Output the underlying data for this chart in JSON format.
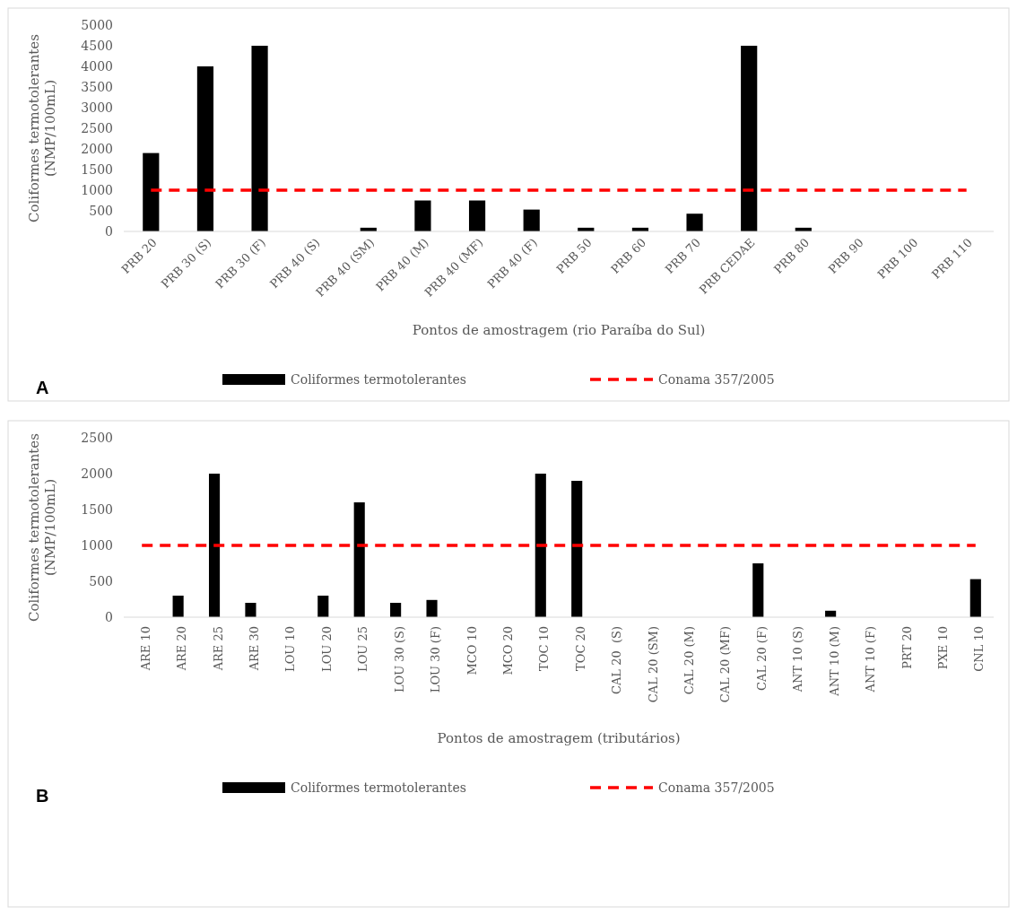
{
  "chart_data": [
    {
      "type": "bar",
      "xlabel": "Pontos de amostragem (rio Paraíba do Sul)",
      "ylabel": "Coliformes termotolerantes (NMP/100mL)",
      "categories": [
        "PRB 20",
        "PRB 30 (S)",
        "PRB 30 (F)",
        "PRB 40 (S)",
        "PRB 40 (SM)",
        "PRB 40 (M)",
        "PRB 40 (MF)",
        "PRB 40 (F)",
        "PRB 50",
        "PRB 60",
        "PRB 70",
        "PRB CEDAE",
        "PRB 80",
        "PRB 90",
        "PRB 100",
        "PRB 110"
      ],
      "series": [
        {
          "name": "Coliformes termotolerantes",
          "color": "#000000",
          "values": [
            1900,
            4000,
            4500,
            0,
            90,
            750,
            750,
            530,
            90,
            90,
            430,
            4500,
            90,
            0,
            0,
            0
          ]
        },
        {
          "name": "Conama 357/2005",
          "type": "line",
          "color": "#ff0000",
          "line_style": "dashed",
          "values": [
            1000,
            1000,
            1000,
            1000,
            1000,
            1000,
            1000,
            1000,
            1000,
            1000,
            1000,
            1000,
            1000,
            1000,
            1000,
            1000
          ]
        }
      ],
      "ylim": [
        0,
        5000
      ],
      "yticks": [
        0,
        500,
        1000,
        1500,
        2000,
        2500,
        3000,
        3500,
        4000,
        4500,
        5000
      ],
      "grid": false,
      "legend": "bottom",
      "marker": "none",
      "annotations": [
        "A"
      ]
    },
    {
      "type": "bar",
      "xlabel": "Pontos de amostragem (tributários)",
      "ylabel": "Coliformes termotolerantes (NMP/100mL)",
      "categories": [
        "ARE 10",
        "ARE 20",
        "ARE 25",
        "ARE 30",
        "LOU 10",
        "LOU 20",
        "LOU 25",
        "LOU 30 (S)",
        "LOU 30 (F)",
        "MCO 10",
        "MCO 20",
        "TOC 10",
        "TOC 20",
        "CAL 20  (S)",
        "CAL 20 (SM)",
        "CAL 20 (M)",
        "CAL 20 (MF)",
        "CAL 20 (F)",
        "ANT 10 (S)",
        "ANT 10 (M)",
        "ANT 10 (F)",
        "PRT 20",
        "PXE 10",
        "CNL 10"
      ],
      "series": [
        {
          "name": "Coliformes termotolerantes",
          "color": "#000000",
          "values": [
            0,
            300,
            2000,
            200,
            0,
            300,
            1600,
            200,
            240,
            0,
            0,
            2000,
            1900,
            0,
            0,
            0,
            0,
            750,
            0,
            90,
            0,
            0,
            0,
            530
          ]
        },
        {
          "name": "Conama 357/2005",
          "type": "line",
          "color": "#ff0000",
          "line_style": "dashed",
          "values": [
            1000,
            1000,
            1000,
            1000,
            1000,
            1000,
            1000,
            1000,
            1000,
            1000,
            1000,
            1000,
            1000,
            1000,
            1000,
            1000,
            1000,
            1000,
            1000,
            1000,
            1000,
            1000,
            1000,
            1000
          ]
        }
      ],
      "ylim": [
        0,
        2500
      ],
      "yticks": [
        0,
        500,
        1000,
        1500,
        2000,
        2500
      ],
      "grid": false,
      "legend": "bottom",
      "marker": "none",
      "annotations": [
        "B"
      ]
    }
  ]
}
